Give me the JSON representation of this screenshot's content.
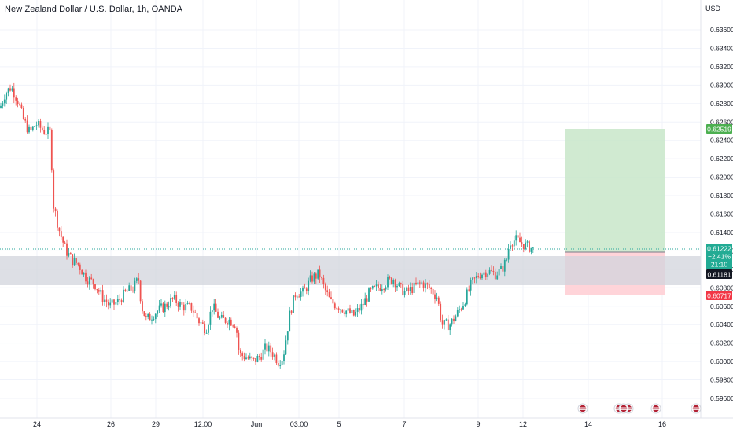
{
  "header": {
    "title": "New Zealand Dollar / U.S. Dollar, 1h, OANDA",
    "currency": "USD"
  },
  "price_axis": {
    "ticks": [
      "0.63600",
      "0.63400",
      "0.63200",
      "0.63000",
      "0.62800",
      "0.62600",
      "0.62400",
      "0.62200",
      "0.62000",
      "0.61800",
      "0.61600",
      "0.61400",
      "0.61200",
      "0.61000",
      "0.60800",
      "0.60600",
      "0.60400",
      "0.60200",
      "0.60000",
      "0.59800",
      "0.59600"
    ]
  },
  "time_axis": {
    "labels": [
      "24",
      "26",
      "29",
      "12:00",
      "Jun",
      "03:00",
      "5",
      "7",
      "9",
      "12",
      "14",
      "16"
    ]
  },
  "badges": {
    "target": "0.62519",
    "last_price": "0.61222",
    "change": "−2.41%",
    "countdown": "21:10",
    "level": "0.61181",
    "stop": "0.60717"
  },
  "colors": {
    "up": "#26a69a",
    "down": "#ef5350",
    "profit_zone": "#c8e6c9",
    "loss_zone": "#ffcdd2",
    "support_zone": "#d1d4dc",
    "target_badge": "#4caf50",
    "stop_badge": "#f23645",
    "last_badge": "#22ab94",
    "level_badge": "#131722"
  },
  "events": {
    "count": 6,
    "icon": "flag-icon"
  },
  "chart_data": {
    "type": "candlestick",
    "title": "New Zealand Dollar / U.S. Dollar, 1h, OANDA",
    "ylabel": "USD",
    "ylim": [
      0.595,
      0.6375
    ],
    "path": [
      [
        0,
        0.6275
      ],
      [
        6,
        0.629
      ],
      [
        14,
        0.6298
      ],
      [
        22,
        0.6285
      ],
      [
        30,
        0.6262
      ],
      [
        38,
        0.6248
      ],
      [
        46,
        0.6258
      ],
      [
        56,
        0.625
      ],
      [
        64,
        0.6248
      ],
      [
        68,
        0.617
      ],
      [
        76,
        0.614
      ],
      [
        84,
        0.612
      ],
      [
        92,
        0.611
      ],
      [
        100,
        0.6105
      ],
      [
        110,
        0.609
      ],
      [
        120,
        0.6085
      ],
      [
        130,
        0.607
      ],
      [
        140,
        0.606
      ],
      [
        150,
        0.6065
      ],
      [
        160,
        0.6075
      ],
      [
        170,
        0.608
      ],
      [
        176,
        0.609
      ],
      [
        180,
        0.606
      ],
      [
        186,
        0.6045
      ],
      [
        200,
        0.6055
      ],
      [
        210,
        0.606
      ],
      [
        220,
        0.6068
      ],
      [
        232,
        0.606
      ],
      [
        244,
        0.6058
      ],
      [
        252,
        0.6045
      ],
      [
        262,
        0.6035
      ],
      [
        270,
        0.606
      ],
      [
        280,
        0.6045
      ],
      [
        292,
        0.6045
      ],
      [
        300,
        0.604
      ],
      [
        304,
        0.6008
      ],
      [
        312,
        0.6005
      ],
      [
        322,
        0.6
      ],
      [
        330,
        0.6005
      ],
      [
        338,
        0.6015
      ],
      [
        346,
        0.601
      ],
      [
        354,
        0.6
      ],
      [
        360,
        0.6005
      ],
      [
        368,
        0.605
      ],
      [
        376,
        0.6075
      ],
      [
        386,
        0.6075
      ],
      [
        396,
        0.609
      ],
      [
        406,
        0.6095
      ],
      [
        412,
        0.608
      ],
      [
        420,
        0.6065
      ],
      [
        430,
        0.606
      ],
      [
        440,
        0.6055
      ],
      [
        450,
        0.605
      ],
      [
        460,
        0.606
      ],
      [
        470,
        0.6075
      ],
      [
        480,
        0.608
      ],
      [
        490,
        0.6085
      ],
      [
        500,
        0.609
      ],
      [
        508,
        0.608
      ],
      [
        516,
        0.6075
      ],
      [
        526,
        0.608
      ],
      [
        536,
        0.6085
      ],
      [
        546,
        0.608
      ],
      [
        556,
        0.607
      ],
      [
        562,
        0.604
      ],
      [
        572,
        0.604
      ],
      [
        580,
        0.605
      ],
      [
        590,
        0.6065
      ],
      [
        600,
        0.6085
      ],
      [
        610,
        0.6095
      ],
      [
        620,
        0.6098
      ],
      [
        630,
        0.6095
      ],
      [
        638,
        0.61
      ],
      [
        644,
        0.611
      ],
      [
        648,
        0.613
      ],
      [
        656,
        0.6132
      ],
      [
        664,
        0.6128
      ],
      [
        670,
        0.6125
      ],
      [
        678,
        0.6122
      ]
    ]
  }
}
